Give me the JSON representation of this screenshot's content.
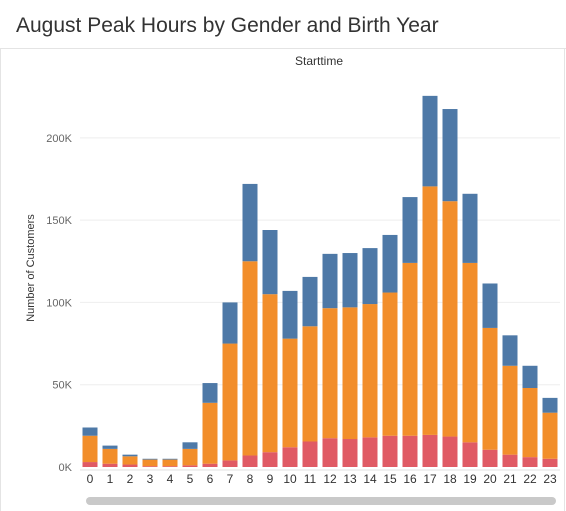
{
  "title": "August Peak Hours by Gender and Birth Year",
  "colors": {
    "bottom": "#e05a64",
    "middle": "#f28e2b",
    "top": "#4e79a7",
    "grid": "#eeeeee"
  },
  "chart_data": {
    "type": "bar",
    "stacked": true,
    "title": "August Peak Hours by Gender and Birth Year",
    "column_header": "Starttime",
    "xlabel": "",
    "ylabel": "Number of Customers",
    "ylim": [
      0,
      240000
    ],
    "yticks": [
      0,
      50000,
      100000,
      150000,
      200000
    ],
    "ytick_labels": [
      "0K",
      "50K",
      "100K",
      "150K",
      "200K"
    ],
    "grid": true,
    "categories": [
      "0",
      "1",
      "2",
      "3",
      "4",
      "5",
      "6",
      "7",
      "8",
      "9",
      "10",
      "11",
      "12",
      "13",
      "14",
      "15",
      "16",
      "17",
      "18",
      "19",
      "20",
      "21",
      "22",
      "23"
    ],
    "series": [
      {
        "values": [
          3000,
          2000,
          1500,
          500,
          500,
          1000,
          2000,
          4000,
          7000,
          9000,
          12000,
          15500,
          17500,
          17000,
          18000,
          19000,
          19000,
          19500,
          18500,
          15000,
          10500,
          7500,
          6000,
          5000
        ]
      },
      {
        "values": [
          16000,
          9000,
          5000,
          4000,
          4000,
          10000,
          37000,
          71000,
          118000,
          96000,
          66000,
          70000,
          79000,
          80000,
          81000,
          87000,
          105000,
          151000,
          143000,
          109000,
          74000,
          54000,
          42000,
          28000
        ]
      },
      {
        "values": [
          5000,
          2000,
          1000,
          500,
          500,
          4000,
          12000,
          25000,
          47000,
          39000,
          29000,
          30000,
          33000,
          33000,
          34000,
          35000,
          40000,
          55000,
          56000,
          42000,
          27000,
          18500,
          13500,
          9000
        ]
      }
    ]
  }
}
